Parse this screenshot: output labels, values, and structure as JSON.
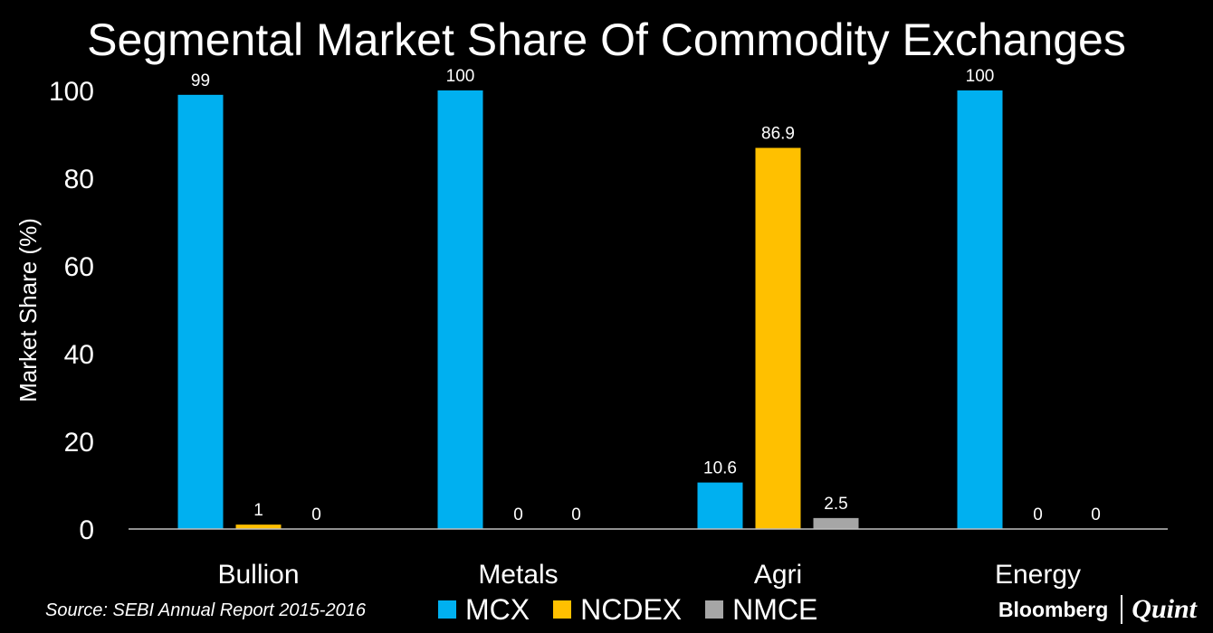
{
  "chart_data": {
    "type": "bar",
    "title": "Segmental Market Share Of Commodity Exchanges",
    "xlabel": "",
    "ylabel": "Market Share (%)",
    "categories": [
      "Bullion",
      "Metals",
      "Agri",
      "Energy"
    ],
    "series": [
      {
        "name": "MCX",
        "values": [
          99,
          100,
          10.6,
          100
        ],
        "labels": [
          "99",
          "100",
          "10.6",
          "100"
        ],
        "color": "#00B0F0"
      },
      {
        "name": "NCDEX",
        "values": [
          1,
          0,
          86.9,
          0
        ],
        "labels": [
          "1",
          "0",
          "86.9",
          "0"
        ],
        "color": "#FFC000"
      },
      {
        "name": "NMCE",
        "values": [
          0,
          0,
          2.5,
          0
        ],
        "labels": [
          "0",
          "0",
          "2.5",
          "0"
        ],
        "color": "#A6A6A6"
      }
    ],
    "ylim": [
      0,
      100
    ],
    "yticks": [
      "0",
      "20",
      "40",
      "60",
      "80",
      "100"
    ],
    "grid": false,
    "legend": "bottom-center"
  },
  "source": "Source: SEBI Annual Report 2015-2016",
  "brand": {
    "bloomberg": "Bloomberg",
    "quint": "Quint"
  }
}
